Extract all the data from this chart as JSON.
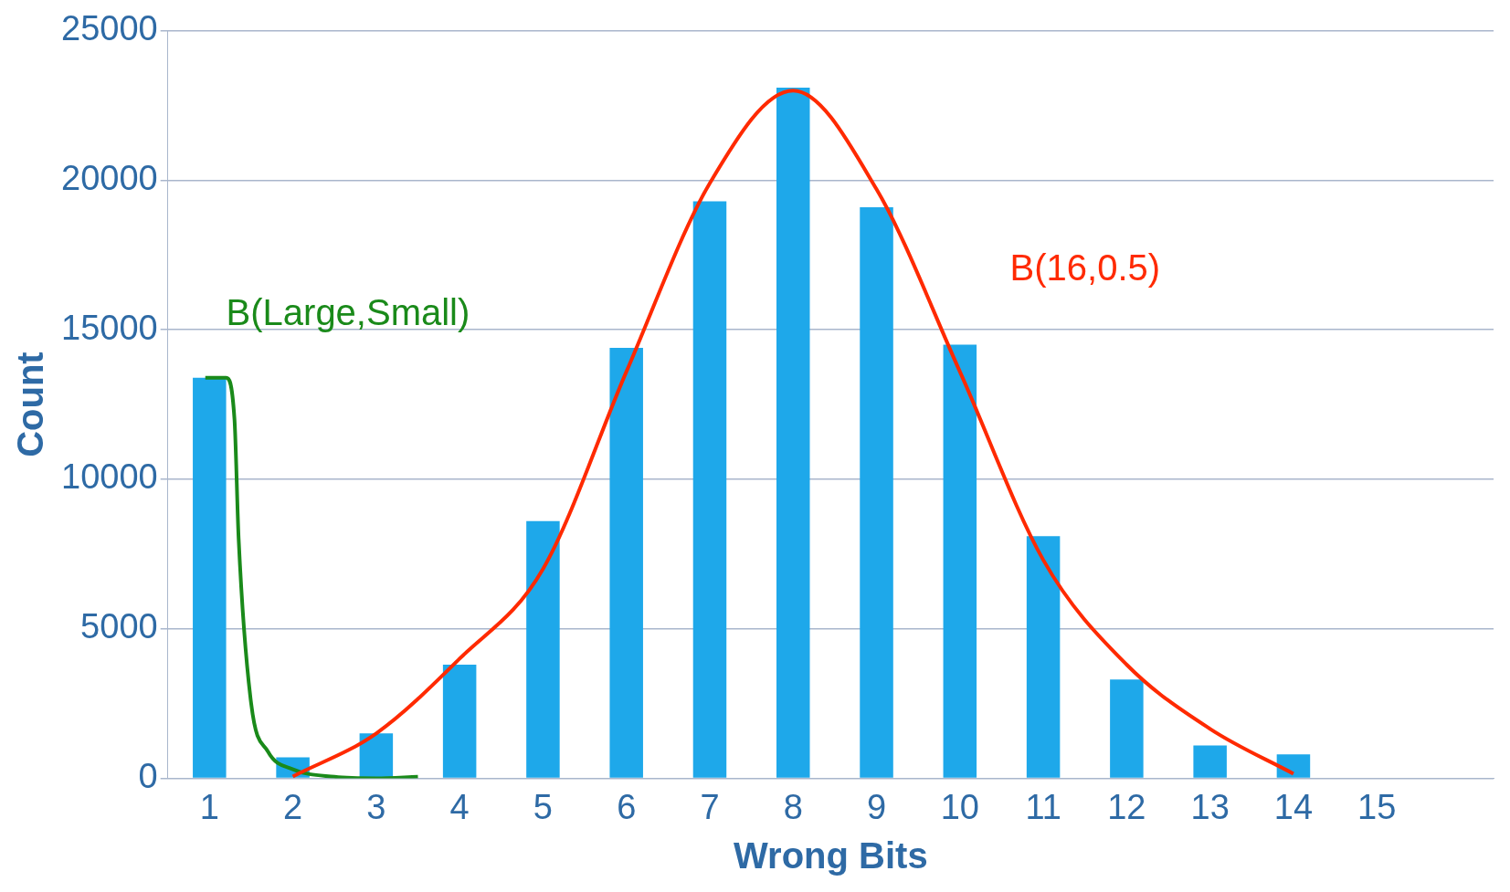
{
  "chart_data": {
    "type": "bar",
    "xlabel": "Wrong Bits",
    "ylabel": "Count",
    "x": [
      1,
      2,
      3,
      4,
      5,
      6,
      7,
      8,
      9,
      10,
      11,
      12,
      13,
      14,
      15
    ],
    "xlim": [
      0.5,
      16.4
    ],
    "xticks": [
      1,
      2,
      3,
      4,
      5,
      6,
      7,
      8,
      9,
      10,
      11,
      12,
      13,
      14,
      15
    ],
    "ylim": [
      0,
      25000
    ],
    "yticks": [
      0,
      5000,
      10000,
      15000,
      20000,
      25000
    ],
    "grid": "y",
    "legend": false,
    "series": [
      {
        "color": "#1ea8ea",
        "values": [
          13400,
          700,
          1500,
          3800,
          8600,
          14400,
          19300,
          23100,
          19100,
          14500,
          8100,
          3300,
          1100,
          800,
          0
        ]
      },
      {
        "type": "line",
        "name": "B(16,0.5)",
        "color": "#ff2a00",
        "x": [
          2,
          3,
          4,
          5,
          6,
          7,
          8,
          9,
          10,
          11,
          12,
          13,
          14
        ],
        "values": [
          60,
          1500,
          4000,
          7000,
          13600,
          19900,
          23000,
          19700,
          13600,
          7300,
          3800,
          1650,
          150
        ]
      },
      {
        "type": "line",
        "name": "B(Large,Small)",
        "color": "#1a8a1a",
        "x": [
          0.95,
          1.2,
          1.3,
          1.35,
          1.5,
          1.7,
          2,
          2.5,
          3,
          3.5
        ],
        "values": [
          13400,
          13400,
          12000,
          8000,
          2500,
          900,
          300,
          50,
          0,
          50
        ]
      }
    ]
  }
}
